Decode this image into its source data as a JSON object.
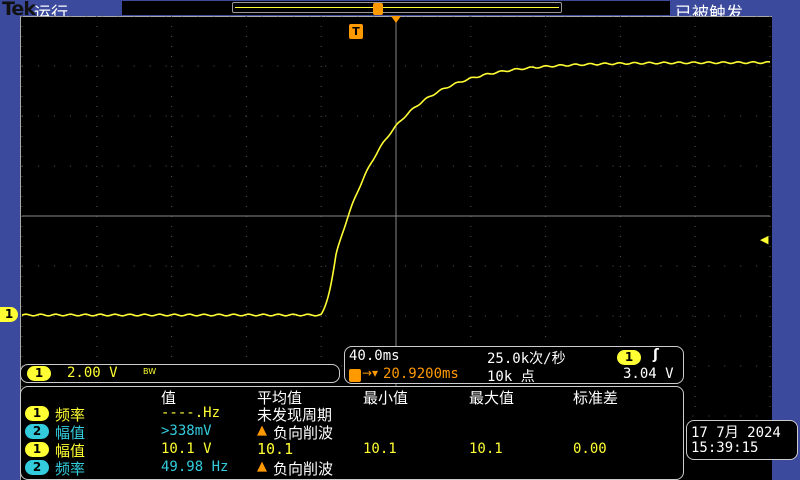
{
  "header": {
    "brand": "Tek",
    "run_state": "运行",
    "trigger_state": "已被触发"
  },
  "colors": {
    "ch1": "#ffff33",
    "ch2": "#33ccdd",
    "trigger": "#ff9900",
    "background": "#3b4a9c"
  },
  "waveform": {
    "channel": "1",
    "time_per_div_ms": 40,
    "volts_per_div": 2,
    "baseline_v": 0,
    "final_v": 10.1,
    "rise_start_ms": -40,
    "time_constant_ms": 29,
    "trigger_level_v": 3.04
  },
  "channel_box": {
    "channel": "1",
    "scale": "2.00 V",
    "bw_label": "BW"
  },
  "horizontal": {
    "timebase": "40.0ms",
    "sample_rate": "25.0k次/秒",
    "trigger_channel": "1",
    "trigger_slope_icon": "rising-edge-icon",
    "trigger_delay": "20.9200ms",
    "record_length": "10k 点",
    "trigger_level": "3.04 V"
  },
  "measurements": {
    "headers": [
      "值",
      "平均值",
      "最小值",
      "最大值",
      "标准差"
    ],
    "rows": [
      {
        "channel": "1",
        "name": "频率",
        "value": "----.Hz",
        "mean": "未发现周期",
        "warn": false,
        "min": "",
        "max": "",
        "std": ""
      },
      {
        "channel": "2",
        "name": "幅值",
        "value": ">338mV",
        "mean": "负向削波",
        "warn": true,
        "min": "",
        "max": "",
        "std": ""
      },
      {
        "channel": "1",
        "name": "幅值",
        "value": "10.1 V",
        "mean": "10.1",
        "warn": false,
        "min": "10.1",
        "max": "10.1",
        "std": "0.00"
      },
      {
        "channel": "2",
        "name": "频率",
        "value": "49.98 Hz",
        "mean": "负向削波",
        "warn": true,
        "min": "",
        "max": "",
        "std": ""
      }
    ]
  },
  "datetime": {
    "date": "17 7月  2024",
    "time": "15:39:15"
  },
  "markers": {
    "ch1_ground": "1",
    "trigger_pos": "T"
  }
}
